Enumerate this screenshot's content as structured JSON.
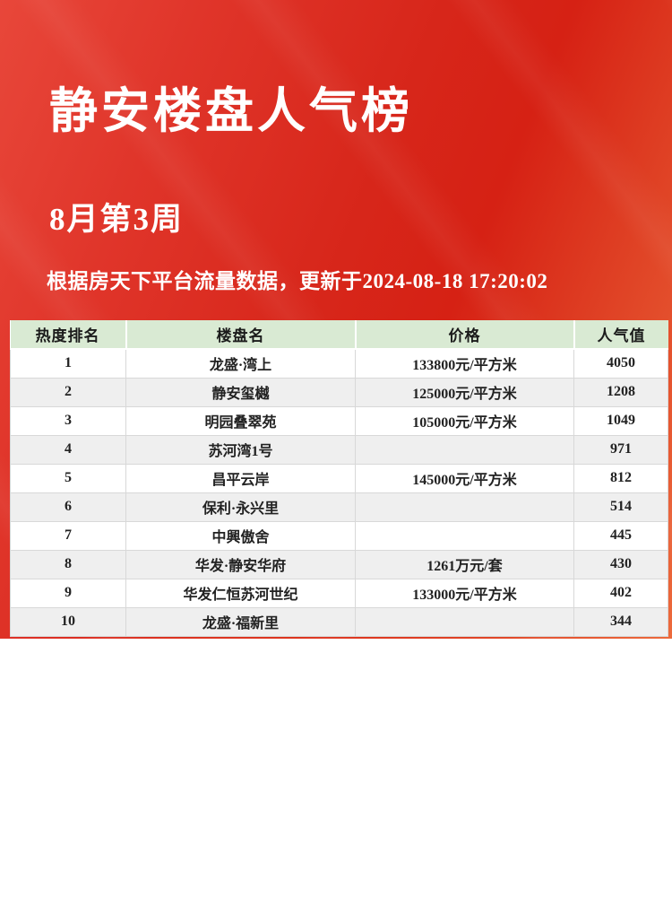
{
  "hero": {
    "title": "静安楼盘人气榜",
    "subtitle": "8月第3周",
    "note": "根据房天下平台流量数据，更新于2024-08-18 17:20:02"
  },
  "chart_data": {
    "type": "table",
    "title": "静安楼盘人气榜",
    "subtitle": "8月第3周",
    "note": "根据房天下平台流量数据，更新于2024-08-18 17:20:02",
    "columns": [
      "热度排名",
      "楼盘名",
      "价格",
      "人气值"
    ],
    "rows": [
      [
        "1",
        "龙盛·湾上",
        "133800元/平方米",
        "4050"
      ],
      [
        "2",
        "静安玺樾",
        "125000元/平方米",
        "1208"
      ],
      [
        "3",
        "明园叠翠苑",
        "105000元/平方米",
        "1049"
      ],
      [
        "4",
        "苏河湾1号",
        "",
        "971"
      ],
      [
        "5",
        "昌平云岸",
        "145000元/平方米",
        "812"
      ],
      [
        "6",
        "保利·永兴里",
        "",
        "514"
      ],
      [
        "7",
        "中興傲舍",
        "",
        "445"
      ],
      [
        "8",
        "华发·静安华府",
        "1261万元/套",
        "430"
      ],
      [
        "9",
        "华发仁恒苏河世纪",
        "133000元/平方米",
        "402"
      ],
      [
        "10",
        "龙盛·福新里",
        "",
        "344"
      ]
    ]
  },
  "colors": {
    "background_red": "#d7261a",
    "background_red_light": "#ec6a3c",
    "header_green": "#d9ead3",
    "zebra_gray": "#efefef",
    "text_white": "#ffffff",
    "text_dark": "#222222",
    "cell_border": "#d8d8d8"
  }
}
